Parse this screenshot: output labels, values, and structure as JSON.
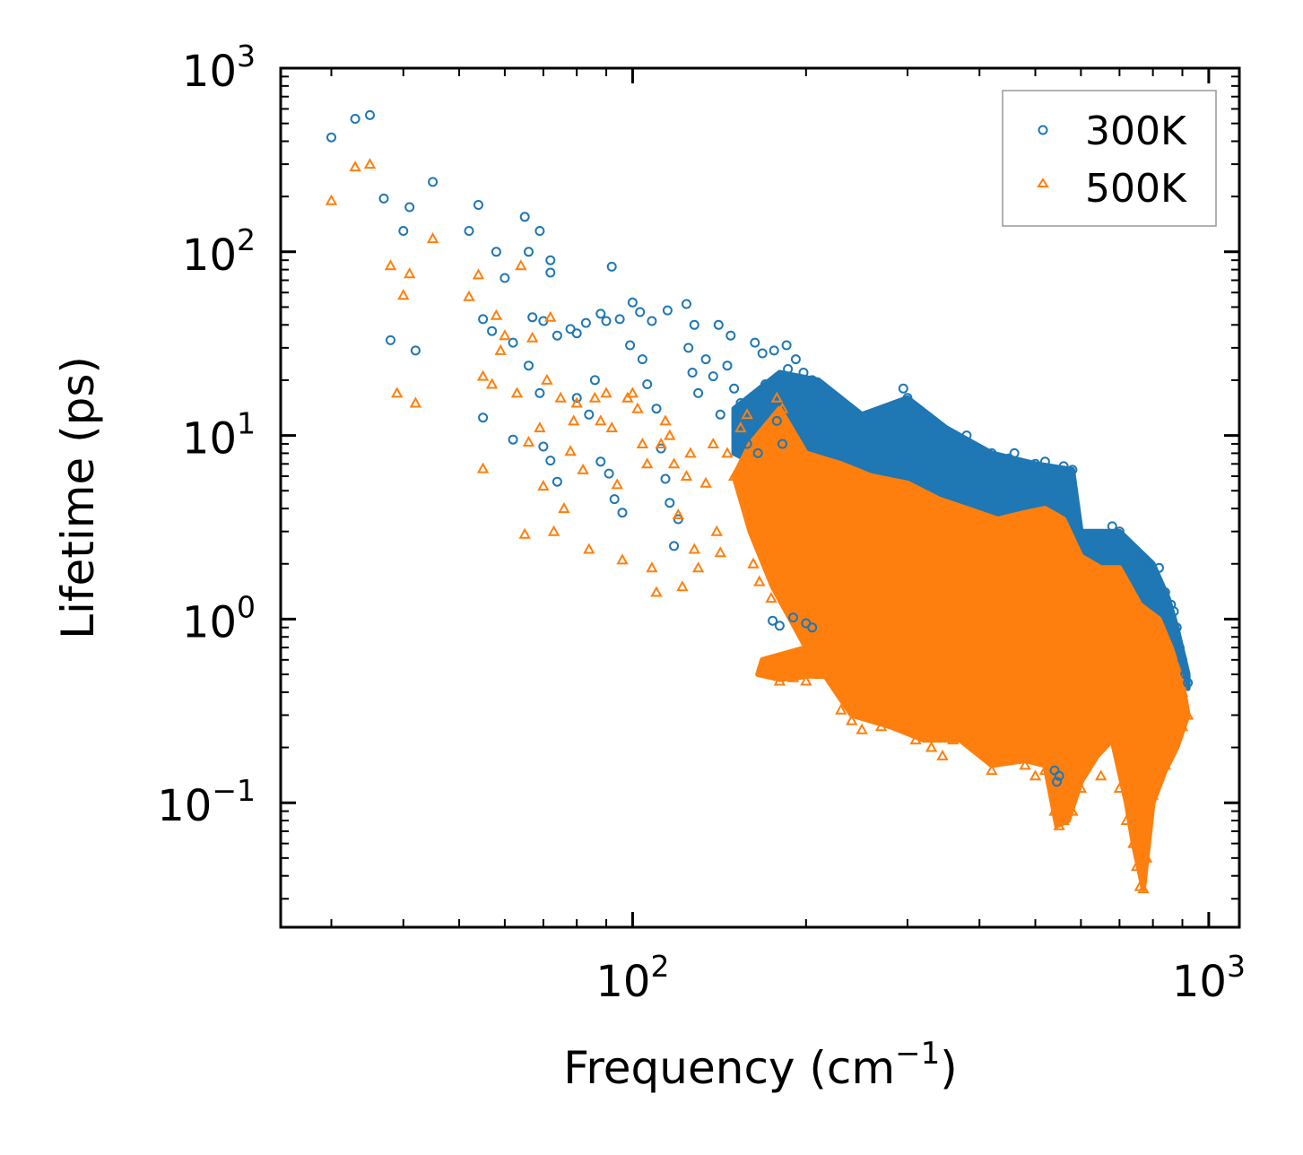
{
  "chart_data": {
    "type": "scatter",
    "title": "",
    "xlabel": "Frequency (cm",
    "xlabel_superscript": "−1",
    "xlabel_suffix": ")",
    "ylabel": "Lifetime (ps)",
    "xscale": "log",
    "yscale": "log",
    "xlim": [
      24.5,
      1130
    ],
    "ylim": [
      0.021,
      1000
    ],
    "grid": false,
    "legend_position": "top-right",
    "x_ticks": [
      {
        "value": 100,
        "base": "10",
        "exponent": "2"
      },
      {
        "value": 1000,
        "base": "10",
        "exponent": "3"
      }
    ],
    "y_ticks": [
      {
        "value": 0.1,
        "base": "10",
        "exponent": "−1"
      },
      {
        "value": 1,
        "base": "10",
        "exponent": "0"
      },
      {
        "value": 10,
        "base": "10",
        "exponent": "1"
      },
      {
        "value": 100,
        "base": "10",
        "exponent": "2"
      },
      {
        "value": 1000,
        "base": "10",
        "exponent": "3"
      }
    ],
    "series": [
      {
        "name": "300K",
        "marker": "circle",
        "color": "#1f77b4",
        "points": [
          [
            30,
            420
          ],
          [
            33,
            530
          ],
          [
            35,
            555
          ],
          [
            37,
            195
          ],
          [
            40,
            130
          ],
          [
            41,
            175
          ],
          [
            45,
            240
          ],
          [
            52,
            130
          ],
          [
            54,
            180
          ],
          [
            58,
            100
          ],
          [
            60,
            72
          ],
          [
            65,
            155
          ],
          [
            66,
            100
          ],
          [
            69,
            130
          ],
          [
            72,
            90
          ],
          [
            72,
            77
          ],
          [
            92,
            83
          ],
          [
            38,
            33
          ],
          [
            42,
            29
          ],
          [
            55,
            43
          ],
          [
            57,
            37
          ],
          [
            62,
            32
          ],
          [
            67,
            44
          ],
          [
            70,
            42
          ],
          [
            74,
            35
          ],
          [
            78,
            38
          ],
          [
            80,
            36
          ],
          [
            83,
            41
          ],
          [
            88,
            46
          ],
          [
            90,
            42
          ],
          [
            95,
            43
          ],
          [
            100,
            53
          ],
          [
            103,
            47
          ],
          [
            108,
            42
          ],
          [
            115,
            48
          ],
          [
            124,
            52
          ],
          [
            128,
            40
          ],
          [
            141,
            40
          ],
          [
            148,
            35
          ],
          [
            163,
            32
          ],
          [
            168,
            28
          ],
          [
            176,
            29
          ],
          [
            185,
            31
          ],
          [
            192,
            26
          ],
          [
            198,
            22
          ],
          [
            55,
            12.5
          ],
          [
            62,
            9.5
          ],
          [
            66,
            24
          ],
          [
            69,
            17
          ],
          [
            70,
            8.7
          ],
          [
            72,
            7.3
          ],
          [
            74,
            5.6
          ],
          [
            80,
            16
          ],
          [
            84,
            13
          ],
          [
            86,
            20
          ],
          [
            88,
            7.2
          ],
          [
            91,
            6.2
          ],
          [
            93,
            4.5
          ],
          [
            96,
            3.8
          ],
          [
            99,
            31
          ],
          [
            104,
            26
          ],
          [
            106,
            19
          ],
          [
            110,
            14
          ],
          [
            112,
            8.5
          ],
          [
            114,
            5.8
          ],
          [
            116,
            4.3
          ],
          [
            118,
            2.5
          ],
          [
            120,
            3.5
          ],
          [
            125,
            30
          ],
          [
            127,
            22
          ],
          [
            130,
            17
          ],
          [
            134,
            26
          ],
          [
            138,
            21
          ],
          [
            142,
            13
          ],
          [
            146,
            24
          ],
          [
            150,
            18
          ],
          [
            154,
            15
          ],
          [
            158,
            9
          ],
          [
            161,
            11
          ],
          [
            165,
            8
          ],
          [
            170,
            19
          ],
          [
            175,
            16
          ],
          [
            178,
            12
          ],
          [
            182,
            9
          ],
          [
            186,
            23
          ],
          [
            190,
            14
          ],
          [
            196,
            18
          ],
          [
            205,
            20
          ],
          [
            210,
            15
          ],
          [
            215,
            17
          ],
          [
            220,
            13
          ],
          [
            225,
            11
          ],
          [
            230,
            14
          ],
          [
            240,
            12
          ],
          [
            250,
            12
          ],
          [
            260,
            11
          ],
          [
            270,
            12
          ],
          [
            280,
            11
          ],
          [
            290,
            12
          ],
          [
            295,
            18
          ],
          [
            300,
            16
          ],
          [
            310,
            13
          ],
          [
            320,
            12
          ],
          [
            330,
            11
          ],
          [
            340,
            11
          ],
          [
            350,
            10
          ],
          [
            360,
            9.5
          ],
          [
            370,
            9
          ],
          [
            380,
            10
          ],
          [
            390,
            8.5
          ],
          [
            400,
            8
          ],
          [
            420,
            8
          ],
          [
            430,
            7.5
          ],
          [
            450,
            7.5
          ],
          [
            460,
            8
          ],
          [
            480,
            7
          ],
          [
            500,
            7
          ],
          [
            520,
            7.2
          ],
          [
            540,
            6.5
          ],
          [
            560,
            6.8
          ],
          [
            580,
            6.5
          ],
          [
            600,
            2.8
          ],
          [
            620,
            2.6
          ],
          [
            640,
            2.4
          ],
          [
            660,
            2.5
          ],
          [
            680,
            3.2
          ],
          [
            700,
            3
          ],
          [
            720,
            2.5
          ],
          [
            740,
            2.2
          ],
          [
            760,
            2
          ],
          [
            780,
            2
          ],
          [
            800,
            1.8
          ],
          [
            820,
            1.9
          ],
          [
            840,
            1.4
          ],
          [
            860,
            1.2
          ],
          [
            870,
            1.1
          ],
          [
            880,
            0.9
          ],
          [
            890,
            0.7
          ],
          [
            900,
            0.6
          ],
          [
            910,
            0.5
          ],
          [
            920,
            0.45
          ],
          [
            175,
            0.98
          ],
          [
            180,
            0.92
          ],
          [
            190,
            1.02
          ],
          [
            200,
            0.95
          ],
          [
            205,
            0.9
          ],
          [
            540,
            0.15
          ],
          [
            545,
            0.13
          ],
          [
            550,
            0.14
          ]
        ]
      },
      {
        "name": "500K",
        "marker": "triangle",
        "color": "#ff7f0e",
        "points": [
          [
            30,
            190
          ],
          [
            33,
            290
          ],
          [
            35,
            300
          ],
          [
            38,
            84
          ],
          [
            40,
            58
          ],
          [
            41,
            76
          ],
          [
            45,
            118
          ],
          [
            39,
            17
          ],
          [
            42,
            15
          ],
          [
            52,
            57
          ],
          [
            54,
            75
          ],
          [
            55,
            6.6
          ],
          [
            55,
            21
          ],
          [
            57,
            19
          ],
          [
            58,
            45
          ],
          [
            59,
            29
          ],
          [
            60,
            35
          ],
          [
            63,
            17
          ],
          [
            64,
            84
          ],
          [
            65,
            2.9
          ],
          [
            66,
            9.2
          ],
          [
            67,
            34
          ],
          [
            69,
            11
          ],
          [
            70,
            5.3
          ],
          [
            71,
            20
          ],
          [
            72,
            44
          ],
          [
            73,
            3
          ],
          [
            75,
            16
          ],
          [
            76,
            4
          ],
          [
            78,
            8.2
          ],
          [
            79,
            12
          ],
          [
            80,
            15
          ],
          [
            82,
            6.5
          ],
          [
            84,
            2.4
          ],
          [
            86,
            16
          ],
          [
            88,
            12
          ],
          [
            90,
            17
          ],
          [
            92,
            11
          ],
          [
            94,
            5.4
          ],
          [
            96,
            2.1
          ],
          [
            98,
            16
          ],
          [
            100,
            17
          ],
          [
            102,
            14
          ],
          [
            104,
            9
          ],
          [
            106,
            7
          ],
          [
            108,
            1.9
          ],
          [
            110,
            1.4
          ],
          [
            112,
            9
          ],
          [
            114,
            12
          ],
          [
            116,
            10
          ],
          [
            118,
            7
          ],
          [
            120,
            3.7
          ],
          [
            122,
            1.5
          ],
          [
            124,
            6
          ],
          [
            126,
            8
          ],
          [
            128,
            2.4
          ],
          [
            130,
            1.9
          ],
          [
            134,
            5.5
          ],
          [
            138,
            9
          ],
          [
            140,
            3
          ],
          [
            142,
            2.3
          ],
          [
            146,
            8
          ],
          [
            150,
            6
          ],
          [
            154,
            11
          ],
          [
            158,
            13
          ],
          [
            162,
            2
          ],
          [
            166,
            1.6
          ],
          [
            170,
            3
          ],
          [
            174,
            1.3
          ],
          [
            178,
            16
          ],
          [
            182,
            14
          ],
          [
            186,
            11
          ],
          [
            190,
            8
          ],
          [
            195,
            6
          ],
          [
            200,
            7
          ],
          [
            210,
            5.5
          ],
          [
            220,
            6
          ],
          [
            230,
            5
          ],
          [
            240,
            4.5
          ],
          [
            250,
            5.5
          ],
          [
            260,
            4.5
          ],
          [
            270,
            5
          ],
          [
            280,
            4
          ],
          [
            290,
            4.2
          ],
          [
            300,
            3.8
          ],
          [
            310,
            5
          ],
          [
            320,
            4.5
          ],
          [
            330,
            3.5
          ],
          [
            340,
            3.5
          ],
          [
            350,
            4
          ],
          [
            360,
            3
          ],
          [
            370,
            3.2
          ],
          [
            380,
            2.8
          ],
          [
            390,
            3
          ],
          [
            400,
            3.5
          ],
          [
            420,
            3.2
          ],
          [
            440,
            2.5
          ],
          [
            460,
            3
          ],
          [
            480,
            3.5
          ],
          [
            500,
            3.2
          ],
          [
            520,
            3.8
          ],
          [
            540,
            2.8
          ],
          [
            560,
            2.5
          ],
          [
            580,
            2.2
          ],
          [
            600,
            1.8
          ],
          [
            620,
            1.5
          ],
          [
            640,
            1.7
          ],
          [
            660,
            1.4
          ],
          [
            680,
            1.6
          ],
          [
            700,
            1.3
          ],
          [
            720,
            1
          ],
          [
            740,
            0.9
          ],
          [
            760,
            0.8
          ],
          [
            780,
            0.7
          ],
          [
            800,
            0.85
          ],
          [
            820,
            0.7
          ],
          [
            840,
            0.6
          ],
          [
            860,
            0.55
          ],
          [
            880,
            0.5
          ],
          [
            900,
            0.4
          ],
          [
            920,
            0.3
          ],
          [
            170,
            0.56
          ],
          [
            175,
            0.5
          ],
          [
            180,
            0.46
          ],
          [
            190,
            0.48
          ],
          [
            200,
            0.46
          ],
          [
            210,
            0.5
          ],
          [
            230,
            0.32
          ],
          [
            240,
            0.28
          ],
          [
            250,
            0.25
          ],
          [
            270,
            0.26
          ],
          [
            290,
            0.26
          ],
          [
            310,
            0.22
          ],
          [
            330,
            0.2
          ],
          [
            345,
            0.18
          ],
          [
            360,
            0.22
          ],
          [
            380,
            0.24
          ],
          [
            400,
            0.2
          ],
          [
            420,
            0.15
          ],
          [
            440,
            0.17
          ],
          [
            460,
            0.18
          ],
          [
            480,
            0.16
          ],
          [
            500,
            0.14
          ],
          [
            520,
            0.15
          ],
          [
            540,
            0.09
          ],
          [
            550,
            0.075
          ],
          [
            560,
            0.08
          ],
          [
            580,
            0.09
          ],
          [
            600,
            0.12
          ],
          [
            650,
            0.14
          ],
          [
            700,
            0.12
          ],
          [
            720,
            0.08
          ],
          [
            740,
            0.06
          ],
          [
            750,
            0.045
          ],
          [
            760,
            0.035
          ],
          [
            770,
            0.034
          ],
          [
            780,
            0.05
          ],
          [
            800,
            0.11
          ],
          [
            820,
            0.14
          ],
          [
            840,
            0.16
          ],
          [
            860,
            0.2
          ],
          [
            900,
            0.26
          ]
        ]
      }
    ]
  }
}
